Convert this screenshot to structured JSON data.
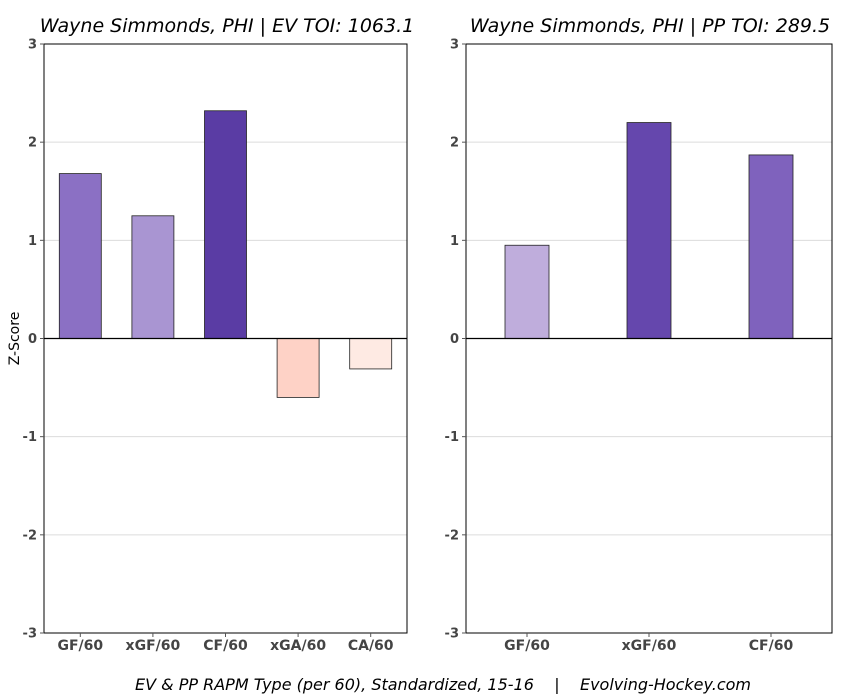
{
  "chart_data": [
    {
      "type": "bar",
      "title": "Wayne Simmonds, PHI  |  EV TOI: 1063.1",
      "ylabel": "Z-Score",
      "xlabel": "",
      "ylim": [
        -3,
        3
      ],
      "yticks": [
        -3,
        -2,
        -1,
        0,
        1,
        2,
        3
      ],
      "grid": true,
      "categories": [
        "GF/60",
        "xGF/60",
        "CF/60",
        "xGA/60",
        "CA/60"
      ],
      "values": [
        1.68,
        1.25,
        2.32,
        -0.6,
        -0.31
      ],
      "colors": [
        "#8b70c4",
        "#a995d2",
        "#5a3ca4",
        "#fed2c6",
        "#feeae3"
      ]
    },
    {
      "type": "bar",
      "title": "Wayne Simmonds, PHI  |  PP TOI: 289.5",
      "ylabel": "",
      "xlabel": "",
      "ylim": [
        -3,
        3
      ],
      "yticks": [
        -3,
        -2,
        -1,
        0,
        1,
        2,
        3
      ],
      "grid": true,
      "categories": [
        "GF/60",
        "xGF/60",
        "CF/60"
      ],
      "values": [
        0.95,
        2.2,
        1.87
      ],
      "colors": [
        "#bfaddc",
        "#6547ad",
        "#7f62bd"
      ]
    }
  ],
  "caption": "EV & PP RAPM Type (per 60), Standardized, 15-16    |    Evolving-Hockey.com"
}
